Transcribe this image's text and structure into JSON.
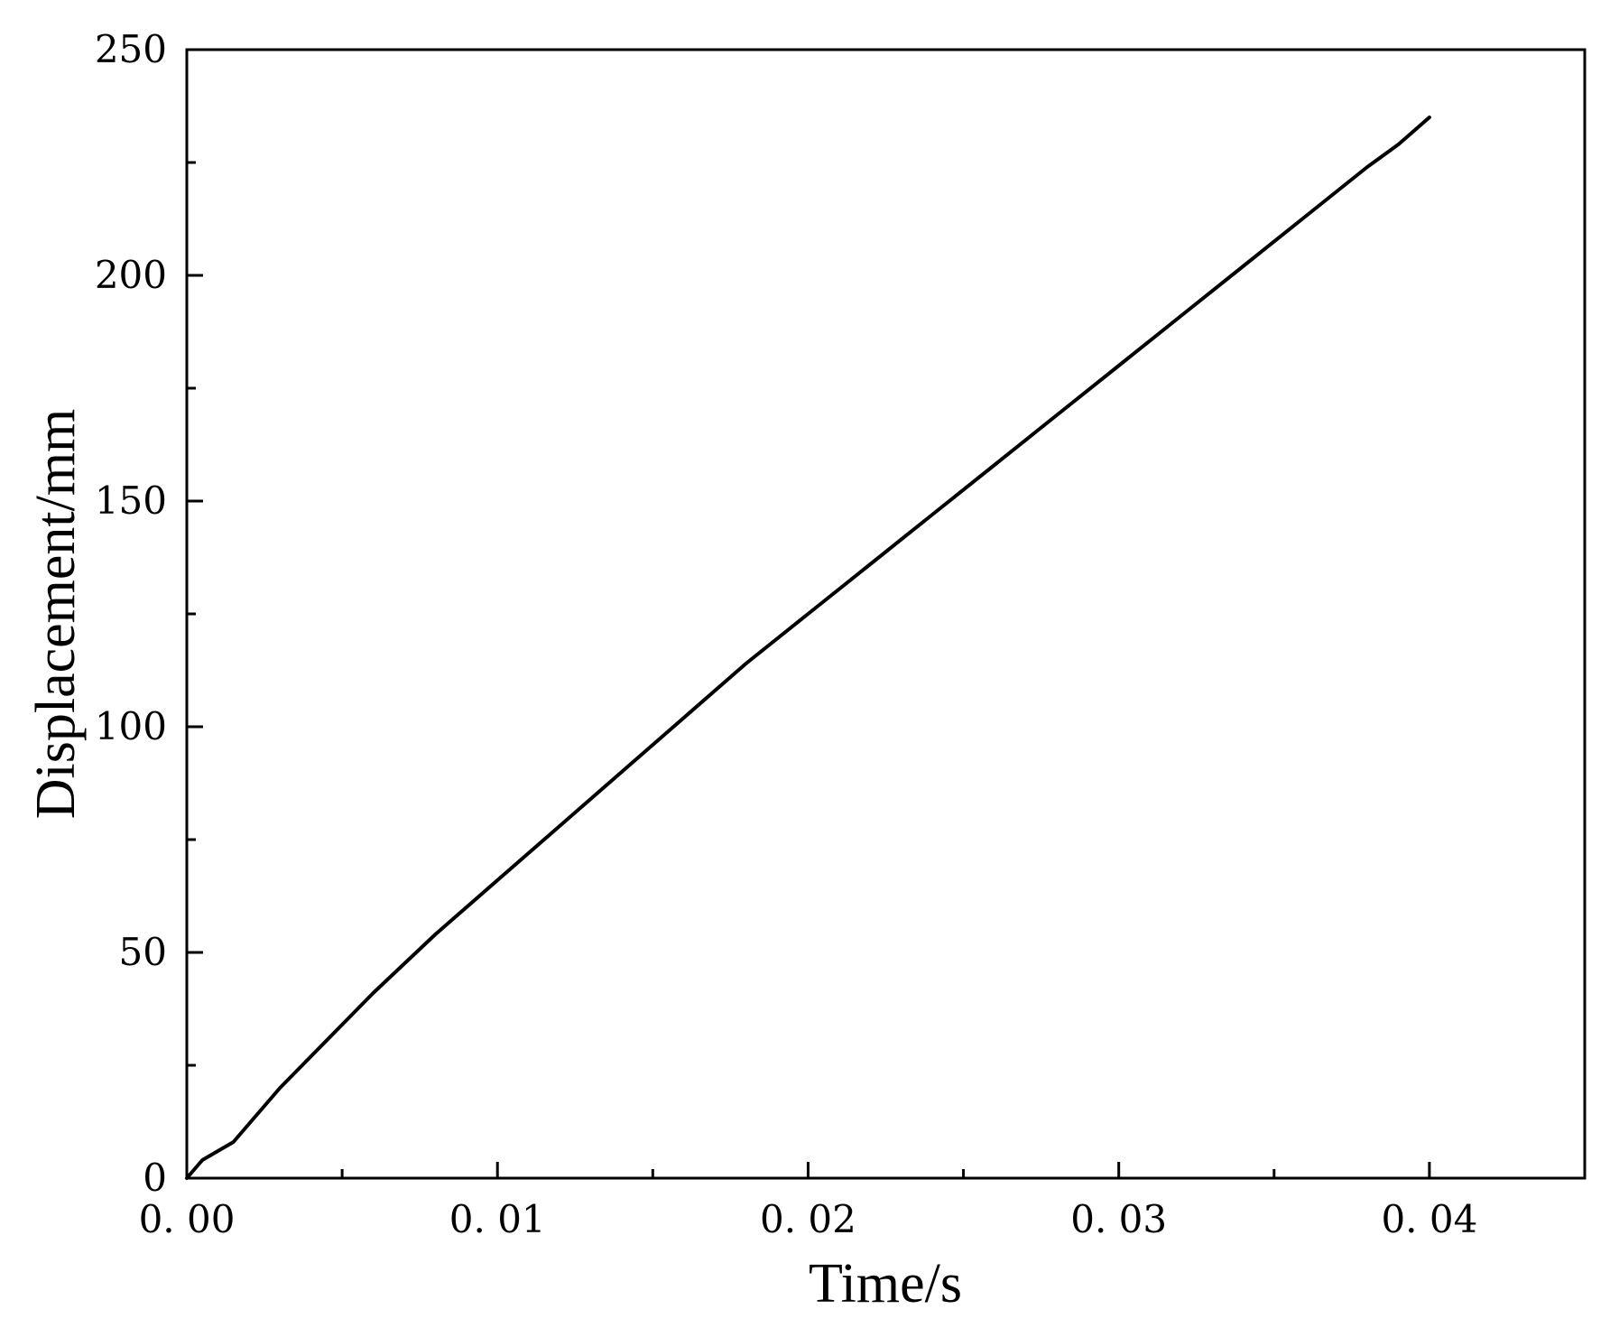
{
  "chart_data": {
    "type": "line",
    "title": "",
    "xlabel": "Time/s",
    "ylabel": "Displacement/mm",
    "xlim": [
      0,
      0.045
    ],
    "ylim": [
      0,
      250
    ],
    "x_ticks": [
      0,
      0.01,
      0.02,
      0.03,
      0.04
    ],
    "x_tick_labels": [
      "0. 00",
      "0. 01",
      "0. 02",
      "0. 03",
      "0. 04"
    ],
    "x_minor_ticks": [
      0.005,
      0.015,
      0.025,
      0.035
    ],
    "y_ticks": [
      0,
      50,
      100,
      150,
      200,
      250
    ],
    "y_tick_labels": [
      "0",
      "50",
      "100",
      "150",
      "200",
      "250"
    ],
    "y_minor_ticks": [
      25,
      75,
      125,
      175,
      225
    ],
    "grid": false,
    "legend": "none",
    "series": [
      {
        "color": "#000000",
        "x": [
          0,
          0.0005,
          0.001,
          0.0015,
          0.002,
          0.003,
          0.004,
          0.005,
          0.006,
          0.008,
          0.01,
          0.012,
          0.014,
          0.016,
          0.018,
          0.02,
          0.022,
          0.024,
          0.026,
          0.028,
          0.03,
          0.032,
          0.034,
          0.036,
          0.038,
          0.039,
          0.0395,
          0.04
        ],
        "y": [
          0,
          4,
          6,
          8,
          12,
          20,
          27,
          34,
          41,
          54,
          66,
          78,
          90,
          102,
          114,
          125,
          136,
          147,
          158,
          169,
          180,
          191,
          202,
          213,
          224,
          229,
          232,
          235
        ]
      }
    ]
  }
}
